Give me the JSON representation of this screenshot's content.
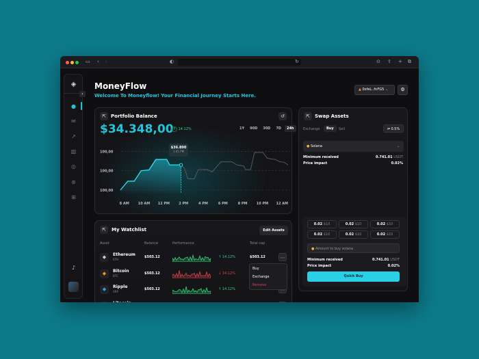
{
  "app": {
    "title": "MoneyFlow",
    "subtitle": "Welcome To Moneyflow! Your Financial Journey Starts Here.",
    "wallet": "0xfeL..fnFG5",
    "accent": "#22c5dc"
  },
  "portfolio": {
    "title": "Portfolio Balance",
    "balance": "$34.348,00",
    "change": "14.12%",
    "ranges": [
      "1Y",
      "90D",
      "30D",
      "7D",
      "24h"
    ],
    "active_range": "24h",
    "tooltip": {
      "value": "$36.890",
      "time": "1:45 PM"
    }
  },
  "chart_data": {
    "type": "area",
    "ylim": [
      0,
      100
    ],
    "y_tick_labels": [
      "100,00",
      "100,00",
      "100,00"
    ],
    "grid": true,
    "x_tick_labels": [
      "8 AM",
      "10 AM",
      "12 PM",
      "2 PM",
      "4 PM",
      "6 PM",
      "8 PM",
      "10 PM",
      "12 AM"
    ],
    "x_hours": [
      7.6,
      8.35,
      9.0,
      9.7,
      10.5,
      11.2,
      12.3,
      12.6,
      13.75,
      14.1,
      14.45,
      15.1,
      15.5,
      16.4,
      16.9,
      17.8,
      18.9,
      19.4,
      20.1,
      20.3,
      20.8,
      21.2,
      22.05,
      22.5,
      23.3,
      23.8,
      24.2,
      24.6
    ],
    "values": [
      0,
      23,
      23,
      50,
      52,
      79,
      79,
      65,
      65,
      56,
      29,
      29,
      53,
      53,
      47,
      73,
      73,
      65,
      62,
      53,
      53,
      97,
      97,
      82,
      79,
      73,
      72,
      65
    ],
    "highlight_index": 8
  },
  "watchlist": {
    "title": "My Watchlist",
    "edit": "Edit Assets",
    "headers": [
      "Asset",
      "Balance",
      "Performance",
      "Total cap"
    ],
    "rows": [
      {
        "name": "Ethereum",
        "ticker": "ETH",
        "balance": "$503.12",
        "change": "14.12%",
        "trend": "up",
        "cap": "$503.12",
        "icon": "ethereum-icon",
        "color": "#cccccc"
      },
      {
        "name": "Bitcoin",
        "ticker": "BTC",
        "balance": "$503.12",
        "change": "14.12%",
        "trend": "down",
        "cap": "",
        "icon": "bitcoin-icon",
        "color": "#f7931a"
      },
      {
        "name": "Ripple",
        "ticker": "XRP",
        "balance": "$503.12",
        "change": "14.12%",
        "trend": "up",
        "cap": "",
        "icon": "ripple-icon",
        "color": "#2aa3e0"
      },
      {
        "name": "Litecoin",
        "ticker": "",
        "balance": "",
        "change": "",
        "trend": "up",
        "cap": "",
        "icon": "litecoin-icon",
        "color": "#999999"
      }
    ],
    "menu": [
      "Buy",
      "Exchange",
      "Remove"
    ]
  },
  "swap": {
    "title": "Swap Assets",
    "tabs": [
      "Exchange",
      "Buy",
      "Sell"
    ],
    "active_tab": "Buy",
    "slippage": "0.5%",
    "asset": "Solana",
    "min_label": "Minimum received",
    "min_value": "0.741.01",
    "min_unit": "USDT",
    "impact_label": "Price impact",
    "impact_value": "0.02%",
    "presets": [
      {
        "amt": "0.02",
        "usd": "$10"
      },
      {
        "amt": "0.02",
        "usd": "$10"
      },
      {
        "amt": "0.02",
        "usd": "$10"
      },
      {
        "amt": "0.02",
        "usd": "$10"
      },
      {
        "amt": "0.02",
        "usd": "$10"
      },
      {
        "amt": "0.02",
        "usd": "$10"
      }
    ],
    "amount_placeholder": "Amount to buy solana",
    "quick_buy": "Quick Buy"
  }
}
